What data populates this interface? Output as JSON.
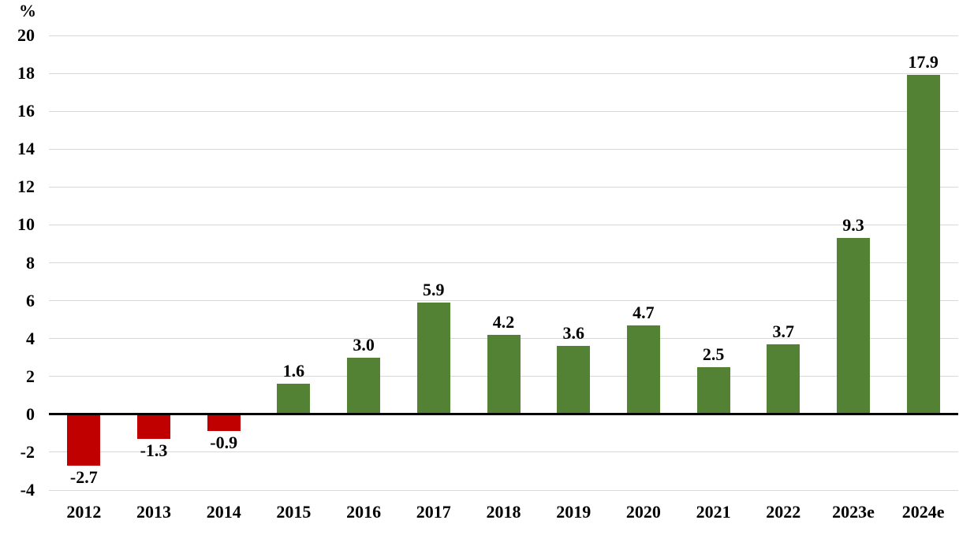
{
  "chart_data": {
    "type": "bar",
    "title": "",
    "ylabel": "%",
    "xlabel": "",
    "categories": [
      "2012",
      "2013",
      "2014",
      "2015",
      "2016",
      "2017",
      "2018",
      "2019",
      "2020",
      "2021",
      "2022",
      "2023e",
      "2024e"
    ],
    "values": [
      -2.7,
      -1.3,
      -0.9,
      1.6,
      3.0,
      5.9,
      4.2,
      3.6,
      4.7,
      2.5,
      3.7,
      9.3,
      17.9
    ],
    "value_labels": [
      "-2.7",
      "-1.3",
      "-0.9",
      "1.6",
      "3.0",
      "5.9",
      "4.2",
      "3.6",
      "4.7",
      "2.5",
      "3.7",
      "9.3",
      "17.9"
    ],
    "ylim": [
      -4,
      20
    ],
    "ytick_step": 2,
    "yticks": [
      20,
      18,
      16,
      14,
      12,
      10,
      8,
      6,
      4,
      2,
      0,
      -2,
      -4
    ],
    "grid": true,
    "legend": "none",
    "colors": {
      "positive_bar": "#548235",
      "negative_bar": "#C00000",
      "gridline": "#D9D9D9",
      "zero_line": "#000000",
      "text": "#000000"
    }
  }
}
